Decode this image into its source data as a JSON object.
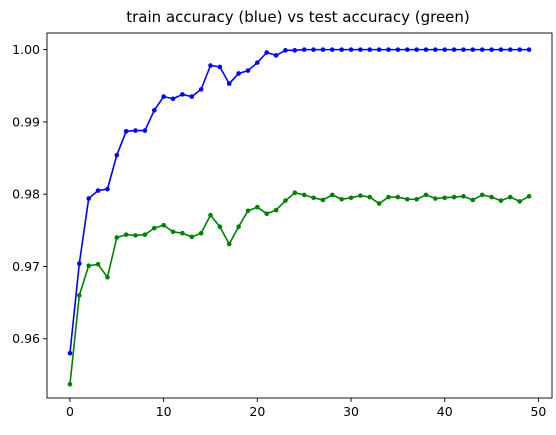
{
  "chart_data": {
    "type": "line",
    "title": "train accuracy (blue) vs test accuracy (green)",
    "xlabel": "",
    "ylabel": "",
    "xlim": [
      -2.45,
      51.45
    ],
    "ylim": [
      0.9518,
      1.0023
    ],
    "x_ticks": [
      0,
      10,
      20,
      30,
      40,
      50
    ],
    "y_ticks": [
      0.96,
      0.97,
      0.98,
      0.99,
      1.0
    ],
    "y_tick_labels": [
      "0.96",
      "0.97",
      "0.98",
      "0.99",
      "1.00"
    ],
    "grid": false,
    "legend": "none",
    "x": [
      0,
      1,
      2,
      3,
      4,
      5,
      6,
      7,
      8,
      9,
      10,
      11,
      12,
      13,
      14,
      15,
      16,
      17,
      18,
      19,
      20,
      21,
      22,
      23,
      24,
      25,
      26,
      27,
      28,
      29,
      30,
      31,
      32,
      33,
      34,
      35,
      36,
      37,
      38,
      39,
      40,
      41,
      42,
      43,
      44,
      45,
      46,
      47,
      48,
      49
    ],
    "series": [
      {
        "color": "#0000ff",
        "marker": "circle",
        "values": [
          0.958,
          0.9704,
          0.9794,
          0.9805,
          0.9807,
          0.9854,
          0.9887,
          0.9888,
          0.9888,
          0.9916,
          0.9935,
          0.9932,
          0.9938,
          0.9935,
          0.9945,
          0.9978,
          0.9976,
          0.9953,
          0.9967,
          0.9971,
          0.9982,
          0.9996,
          0.9992,
          0.9999,
          0.9999,
          1.0,
          1.0,
          1.0,
          1.0,
          1.0,
          1.0,
          1.0,
          1.0,
          1.0,
          1.0,
          1.0,
          1.0,
          1.0,
          1.0,
          1.0,
          1.0,
          1.0,
          1.0,
          1.0,
          1.0,
          1.0,
          1.0,
          1.0,
          1.0,
          1.0
        ]
      },
      {
        "color": "#008000",
        "marker": "circle",
        "values": [
          0.9537,
          0.966,
          0.9701,
          0.9703,
          0.9685,
          0.974,
          0.9744,
          0.9743,
          0.9744,
          0.9753,
          0.9757,
          0.9748,
          0.9746,
          0.9741,
          0.9746,
          0.9771,
          0.9755,
          0.9731,
          0.9755,
          0.9777,
          0.9782,
          0.9773,
          0.9778,
          0.9791,
          0.9802,
          0.9799,
          0.9795,
          0.9792,
          0.9799,
          0.9793,
          0.9795,
          0.9798,
          0.9796,
          0.9787,
          0.9796,
          0.9796,
          0.9793,
          0.9793,
          0.9799,
          0.9794,
          0.9795,
          0.9796,
          0.9797,
          0.9792,
          0.9799,
          0.9796,
          0.9791,
          0.9796,
          0.979,
          0.9797
        ]
      }
    ]
  }
}
